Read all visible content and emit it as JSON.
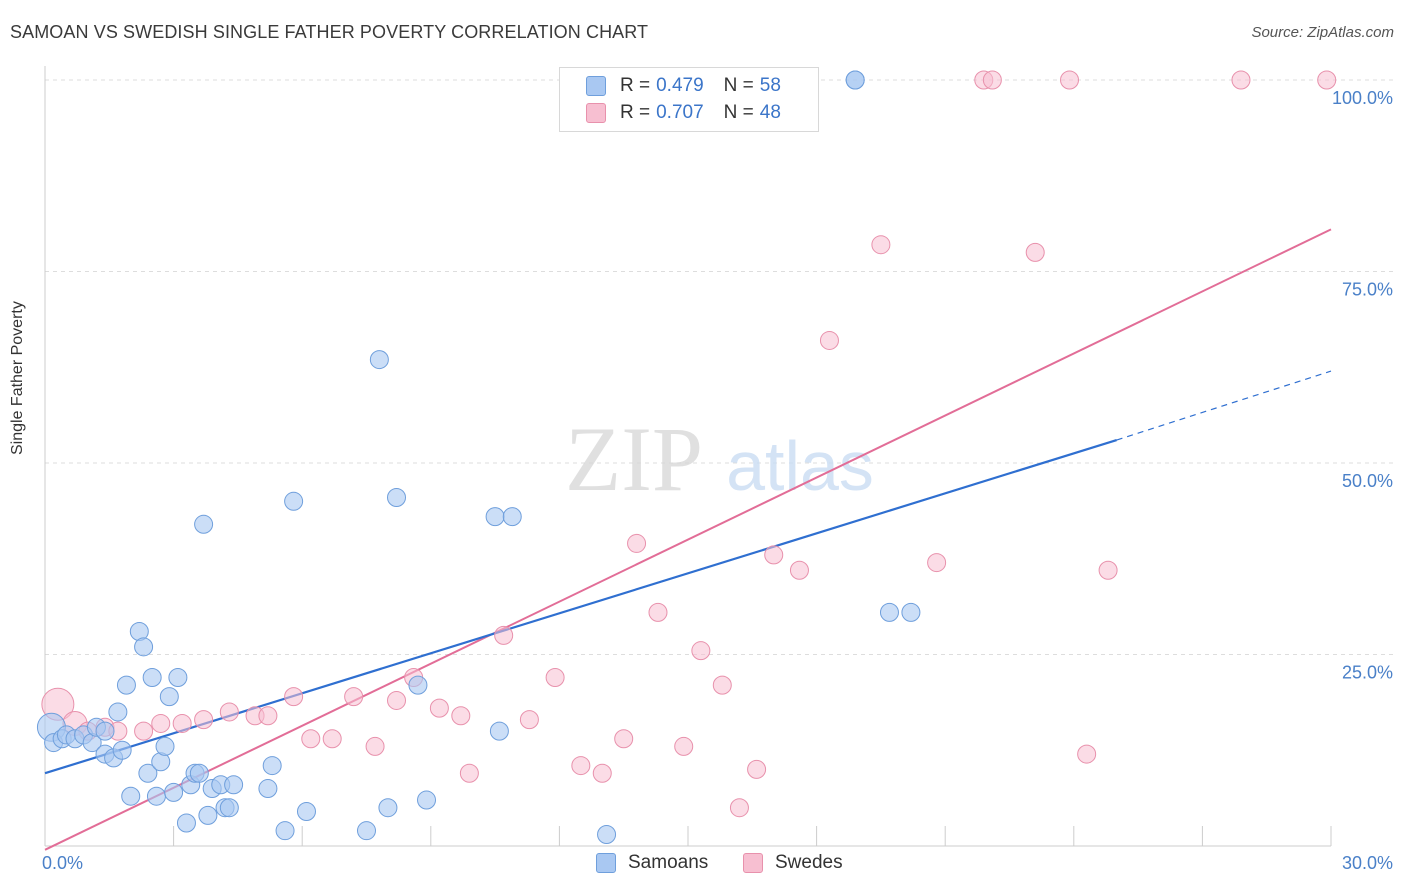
{
  "header": {
    "title": "SAMOAN VS SWEDISH SINGLE FATHER POVERTY CORRELATION CHART",
    "source": "Source: ZipAtlas.com"
  },
  "legend": {
    "samoans": {
      "r_label": "R =",
      "r_value": "0.479",
      "n_label": "N =",
      "n_value": "58"
    },
    "swedes": {
      "r_label": "R =",
      "r_value": "0.707",
      "n_label": "N =",
      "n_value": "48"
    }
  },
  "bottom_legend": {
    "samoans": "Samoans",
    "swedes": "Swedes"
  },
  "watermark": {
    "zip": "ZIP",
    "atlas": "atlas"
  },
  "colors": {
    "samoans_fill": "#a9c8f2",
    "samoans_stroke": "#6f9fdc",
    "samoans_line": "#2f6fd0",
    "swedes_fill": "#f7bfd1",
    "swedes_stroke": "#e891ac",
    "swedes_line": "#e26d97",
    "axis_label": "#4a80c8",
    "grid": "#dddddd"
  },
  "chart_data": {
    "type": "scatter",
    "title": "SAMOAN VS SWEDISH SINGLE FATHER POVERTY CORRELATION CHART",
    "xlabel": "",
    "ylabel": "Single Father Poverty",
    "xlim": [
      0,
      30
    ],
    "ylim": [
      0,
      100
    ],
    "x_tick_labels": [
      "0.0%",
      "30.0%"
    ],
    "y_ticks": [
      25,
      50,
      75,
      100
    ],
    "y_tick_labels": [
      "25.0%",
      "50.0%",
      "75.0%",
      "100.0%"
    ],
    "grid": true,
    "legend": "top-center",
    "series": [
      {
        "name": "Samoans",
        "r": 0.479,
        "n": 58,
        "trend": {
          "x0": 0,
          "y0": 9.5,
          "x1": 25,
          "y1": 53,
          "dashed_to_x": 30,
          "dashed_to_y": 62
        },
        "points": [
          [
            0.15,
            15.5,
            14
          ],
          [
            0.2,
            13.5,
            9
          ],
          [
            0.4,
            14,
            9
          ],
          [
            0.5,
            14.5,
            9
          ],
          [
            0.7,
            14,
            9
          ],
          [
            0.9,
            14.5,
            9
          ],
          [
            1.1,
            13.5,
            9
          ],
          [
            1.2,
            15.5,
            9
          ],
          [
            1.4,
            15,
            9
          ],
          [
            1.4,
            12,
            9
          ],
          [
            1.6,
            11.5,
            9
          ],
          [
            1.7,
            17.5,
            9
          ],
          [
            1.8,
            12.5,
            9
          ],
          [
            1.9,
            21,
            9
          ],
          [
            2.0,
            6.5,
            9
          ],
          [
            2.2,
            28,
            9
          ],
          [
            2.3,
            26,
            9
          ],
          [
            2.4,
            9.5,
            9
          ],
          [
            2.5,
            22,
            9
          ],
          [
            2.6,
            6.5,
            9
          ],
          [
            2.7,
            11,
            9
          ],
          [
            2.8,
            13,
            9
          ],
          [
            2.9,
            19.5,
            9
          ],
          [
            3.0,
            7,
            9
          ],
          [
            3.1,
            22,
            9
          ],
          [
            3.3,
            3,
            9
          ],
          [
            3.4,
            8,
            9
          ],
          [
            3.5,
            9.5,
            9
          ],
          [
            3.6,
            9.5,
            9
          ],
          [
            3.7,
            42,
            9
          ],
          [
            3.8,
            4,
            9
          ],
          [
            3.9,
            7.5,
            9
          ],
          [
            4.1,
            8,
            9
          ],
          [
            4.2,
            5,
            9
          ],
          [
            4.3,
            5,
            9
          ],
          [
            4.4,
            8,
            9
          ],
          [
            5.2,
            7.5,
            9
          ],
          [
            5.3,
            10.5,
            9
          ],
          [
            5.6,
            2,
            9
          ],
          [
            5.8,
            45,
            9
          ],
          [
            6.1,
            4.5,
            9
          ],
          [
            7.5,
            2,
            9
          ],
          [
            7.8,
            63.5,
            9
          ],
          [
            8.0,
            5,
            9
          ],
          [
            8.2,
            45.5,
            9
          ],
          [
            8.9,
            6,
            9
          ],
          [
            8.7,
            21,
            9
          ],
          [
            10.5,
            43,
            9
          ],
          [
            10.6,
            15,
            9
          ],
          [
            10.9,
            43,
            9
          ],
          [
            13.1,
            1.5,
            9
          ],
          [
            18.9,
            100,
            9
          ],
          [
            18.9,
            100,
            9
          ],
          [
            19.7,
            30.5,
            9
          ],
          [
            20.2,
            30.5,
            9
          ]
        ]
      },
      {
        "name": "Swedes",
        "r": 0.707,
        "n": 48,
        "trend": {
          "x0": 0,
          "y0": -0.5,
          "x1": 30,
          "y1": 80.5
        },
        "points": [
          [
            0.3,
            18.5,
            16
          ],
          [
            0.7,
            16,
            12
          ],
          [
            1.0,
            15,
            9
          ],
          [
            1.4,
            15.5,
            9
          ],
          [
            1.7,
            15,
            9
          ],
          [
            2.3,
            15,
            9
          ],
          [
            2.7,
            16,
            9
          ],
          [
            3.2,
            16,
            9
          ],
          [
            3.7,
            16.5,
            9
          ],
          [
            4.3,
            17.5,
            9
          ],
          [
            4.9,
            17,
            9
          ],
          [
            5.2,
            17,
            9
          ],
          [
            5.8,
            19.5,
            9
          ],
          [
            6.2,
            14,
            9
          ],
          [
            6.7,
            14,
            9
          ],
          [
            7.2,
            19.5,
            9
          ],
          [
            7.7,
            13,
            9
          ],
          [
            8.2,
            19,
            9
          ],
          [
            8.6,
            22,
            9
          ],
          [
            9.2,
            18,
            9
          ],
          [
            9.7,
            17,
            9
          ],
          [
            9.9,
            9.5,
            9
          ],
          [
            10.7,
            27.5,
            9
          ],
          [
            11.3,
            16.5,
            9
          ],
          [
            11.9,
            22,
            9
          ],
          [
            12.5,
            10.5,
            9
          ],
          [
            13.0,
            9.5,
            9
          ],
          [
            13.5,
            14,
            9
          ],
          [
            13.8,
            39.5,
            9
          ],
          [
            14.3,
            30.5,
            9
          ],
          [
            14.9,
            13,
            9
          ],
          [
            15.3,
            25.5,
            9
          ],
          [
            15.8,
            21,
            9
          ],
          [
            16.2,
            5,
            9
          ],
          [
            16.6,
            10,
            9
          ],
          [
            17.0,
            38,
            9
          ],
          [
            17.6,
            36,
            9
          ],
          [
            18.3,
            66,
            9
          ],
          [
            19.5,
            78.5,
            9
          ],
          [
            20.8,
            37,
            9
          ],
          [
            21.9,
            100,
            9
          ],
          [
            22.1,
            100,
            9
          ],
          [
            23.1,
            77.5,
            9
          ],
          [
            23.9,
            100,
            9
          ],
          [
            24.3,
            12,
            9
          ],
          [
            24.8,
            36,
            9
          ],
          [
            27.9,
            100,
            9
          ],
          [
            29.9,
            100,
            9
          ]
        ]
      }
    ]
  }
}
